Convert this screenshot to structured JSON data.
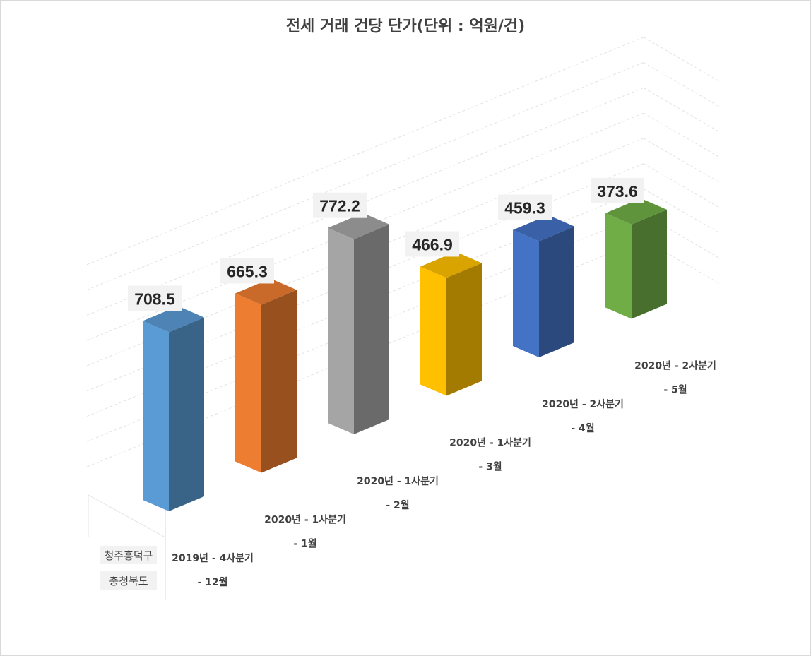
{
  "chart_data": {
    "type": "bar",
    "style": "3d-column",
    "title": "전세 거래 건당 단가(단위 : 억원/건)",
    "categories": [
      [
        "2019년 - 4사분기",
        "- 12월"
      ],
      [
        "2020년 - 1사분기",
        "- 1월"
      ],
      [
        "2020년 - 1사분기",
        "- 2월"
      ],
      [
        "2020년 - 1사분기",
        "- 3월"
      ],
      [
        "2020년 - 2사분기",
        "- 4월"
      ],
      [
        "2020년 - 2사분기",
        "- 5월"
      ]
    ],
    "series_axis_labels": [
      "청주흥덕구",
      "충청북도"
    ],
    "values": [
      708.5,
      665.3,
      772.2,
      466.9,
      459.3,
      373.6
    ],
    "value_labels": [
      "708.5",
      "665.3",
      "772.2",
      "466.9",
      "459.3",
      "373.6"
    ],
    "bar_colors": [
      "#5b9bd5",
      "#ed7d31",
      "#a5a5a5",
      "#ffc000",
      "#4472c4",
      "#70ad47"
    ],
    "grid": true,
    "legend": "none"
  }
}
